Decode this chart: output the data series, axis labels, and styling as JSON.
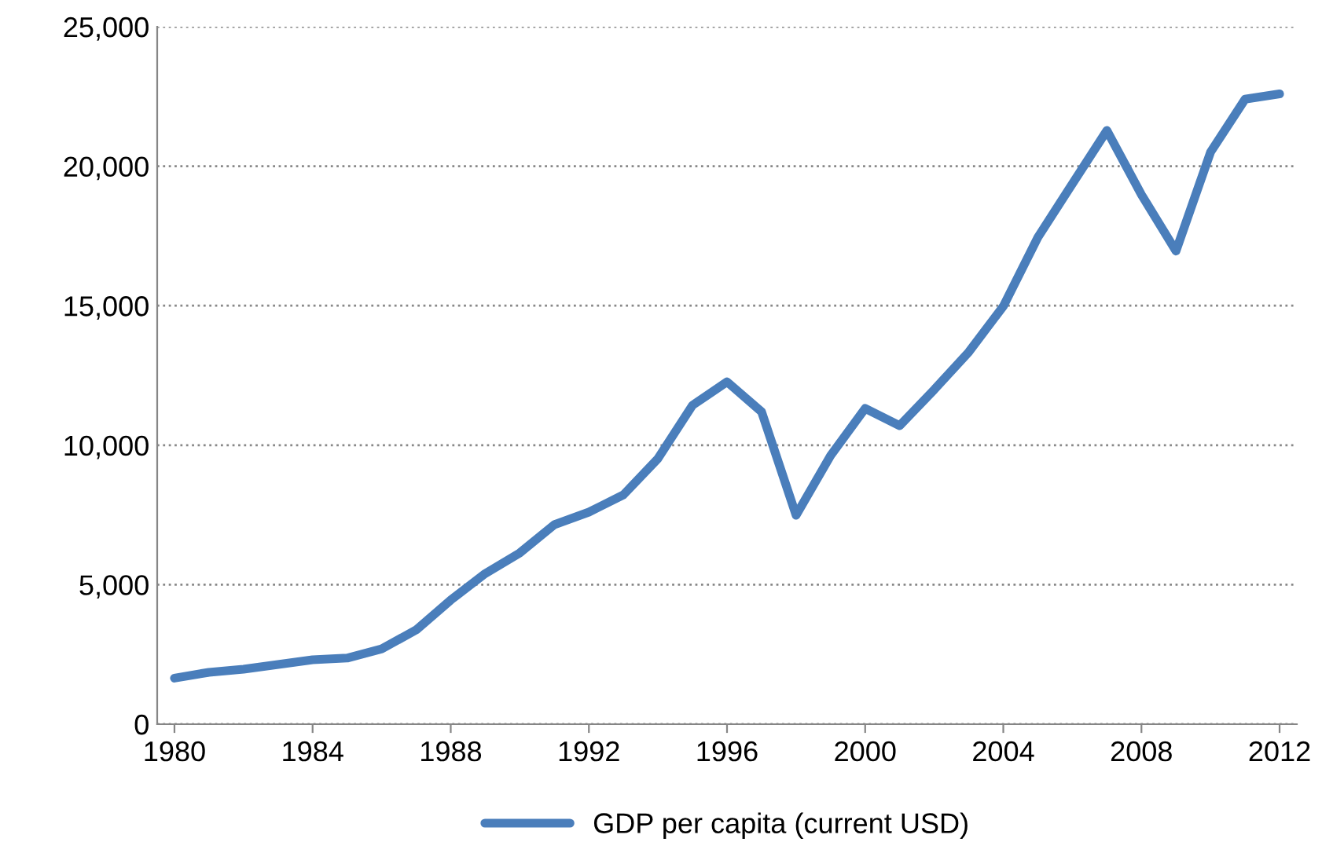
{
  "chart_data": {
    "type": "line",
    "x": [
      1980,
      1981,
      1982,
      1983,
      1984,
      1985,
      1986,
      1987,
      1988,
      1989,
      1990,
      1991,
      1992,
      1993,
      1994,
      1995,
      1996,
      1997,
      1998,
      1999,
      2000,
      2001,
      2002,
      2003,
      2004,
      2005,
      2006,
      2007,
      2008,
      2009,
      2010,
      2011,
      2012
    ],
    "series": [
      {
        "name": "GDP per capita (current USD)",
        "color": "#4a7ebb",
        "values": [
          1650,
          1860,
          1970,
          2140,
          2310,
          2370,
          2700,
          3380,
          4450,
          5400,
          6140,
          7150,
          7600,
          8220,
          9520,
          11430,
          12270,
          11200,
          7490,
          9630,
          11320,
          10700,
          11990,
          13340,
          14980,
          17450,
          19370,
          21280,
          18980,
          16960,
          20500,
          22400,
          22590
        ]
      }
    ],
    "xlim": [
      1979.5,
      2012.5
    ],
    "xticks": [
      1980,
      1984,
      1988,
      1992,
      1996,
      2000,
      2004,
      2008,
      2012
    ],
    "ylim": [
      0,
      25000
    ],
    "yticks": [
      {
        "value": 0,
        "label": "0"
      },
      {
        "value": 5000,
        "label": "5,000"
      },
      {
        "value": 10000,
        "label": "10,000"
      },
      {
        "value": 15000,
        "label": "15,000"
      },
      {
        "value": 20000,
        "label": "20,000"
      },
      {
        "value": 25000,
        "label": "25,000"
      }
    ],
    "grid": "y",
    "legend": "bottom",
    "line_style": "solid",
    "marker": "none"
  }
}
